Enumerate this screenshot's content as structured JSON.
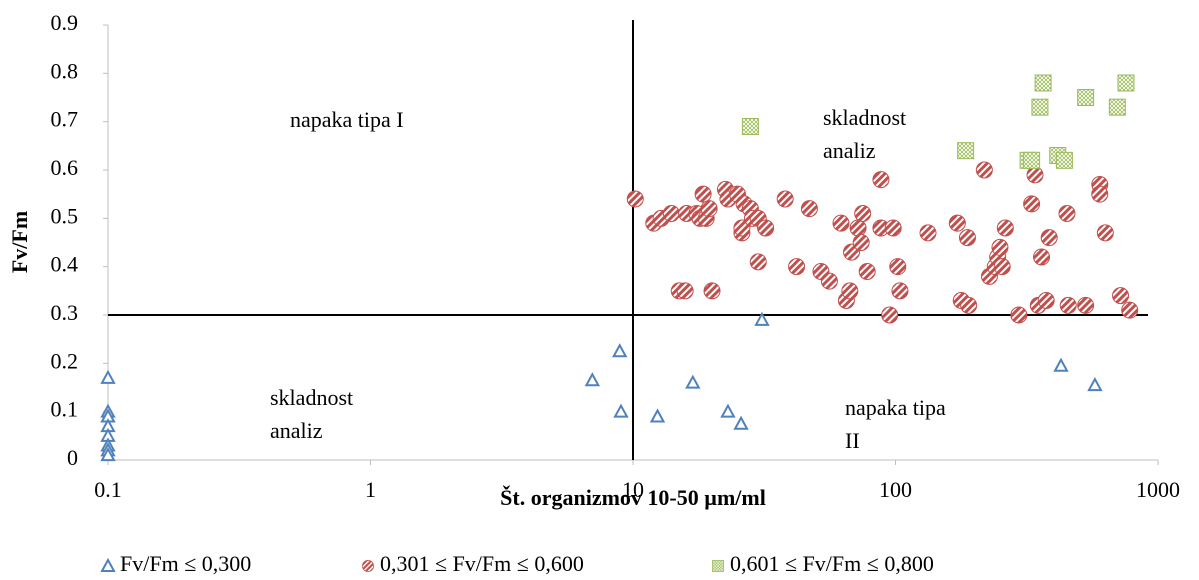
{
  "chart_data": {
    "type": "scatter",
    "x_label": "Št. organizmov 10-50 µm/ml",
    "y_label": "Fv/Fm",
    "xlim": [
      0.1,
      1000
    ],
    "xticks": [
      0.1,
      1,
      10,
      100,
      1000
    ],
    "x_log": true,
    "ylim": [
      0,
      0.9
    ],
    "yticks": [
      0,
      0.1,
      0.2,
      0.3,
      0.4,
      0.5,
      0.6,
      0.7,
      0.8,
      0.9
    ],
    "grid": false,
    "legend": "bottom",
    "vlines": [
      10
    ],
    "hlines": [
      0.3
    ],
    "annotations": [
      {
        "lines": [
          "napaka tipa I"
        ]
      },
      {
        "lines": [
          "skladnost",
          "analiz"
        ]
      },
      {
        "lines": [
          "skladnost",
          "analiz"
        ]
      },
      {
        "lines": [
          "napaka tipa",
          "II"
        ]
      }
    ],
    "series": [
      {
        "name": "Fv/Fm ≤ 0,300",
        "color": "#4f81bd",
        "marker": "triangle",
        "x": [
          0.1,
          0.1,
          0.1,
          0.1,
          0.1,
          0.1,
          0.1,
          0.1,
          7,
          8.9,
          9,
          12.4,
          16.9,
          23,
          25.8,
          31,
          427,
          575
        ],
        "values": [
          0.17,
          0.1,
          0.09,
          0.07,
          0.05,
          0.03,
          0.02,
          0.01,
          0.165,
          0.225,
          0.1,
          0.09,
          0.16,
          0.1,
          0.075,
          0.29,
          0.195,
          0.155
        ]
      },
      {
        "name": "0,301 ≤ Fv/Fm ≤ 0,600",
        "color": "#c0504d",
        "marker": "circle",
        "x": [
          10.2,
          12,
          12.8,
          14,
          15,
          15.8,
          16,
          17.5,
          18,
          18.5,
          19,
          19.5,
          20,
          22.5,
          23,
          25,
          26,
          26,
          26.5,
          28,
          28.5,
          30,
          30,
          32,
          38,
          42,
          47,
          52,
          56,
          62,
          65,
          67,
          68,
          72,
          74,
          75,
          78,
          88,
          88,
          95,
          98,
          102,
          104,
          133,
          172,
          178,
          188,
          190,
          218,
          228,
          240,
          245,
          250,
          255,
          262,
          295,
          330,
          340,
          350,
          360,
          375,
          385,
          450,
          455,
          530,
          600,
          600,
          630,
          720,
          780
        ],
        "values": [
          0.54,
          0.49,
          0.5,
          0.51,
          0.35,
          0.35,
          0.51,
          0.51,
          0.5,
          0.55,
          0.5,
          0.52,
          0.35,
          0.56,
          0.54,
          0.55,
          0.47,
          0.48,
          0.53,
          0.52,
          0.5,
          0.5,
          0.41,
          0.48,
          0.54,
          0.4,
          0.52,
          0.39,
          0.37,
          0.49,
          0.33,
          0.35,
          0.43,
          0.48,
          0.45,
          0.51,
          0.39,
          0.58,
          0.48,
          0.3,
          0.48,
          0.4,
          0.35,
          0.47,
          0.49,
          0.33,
          0.46,
          0.32,
          0.6,
          0.38,
          0.4,
          0.42,
          0.44,
          0.4,
          0.48,
          0.3,
          0.53,
          0.59,
          0.32,
          0.42,
          0.33,
          0.46,
          0.51,
          0.32,
          0.32,
          0.57,
          0.55,
          0.47,
          0.34,
          0.31
        ]
      },
      {
        "name": "0,601 ≤ Fv/Fm ≤ 0,800",
        "color": "#9bbb59",
        "marker": "square",
        "x": [
          28,
          185,
          320,
          330,
          355,
          365,
          415,
          440,
          530,
          700,
          755
        ],
        "values": [
          0.69,
          0.64,
          0.62,
          0.62,
          0.73,
          0.78,
          0.63,
          0.62,
          0.75,
          0.73,
          0.78
        ]
      }
    ]
  }
}
